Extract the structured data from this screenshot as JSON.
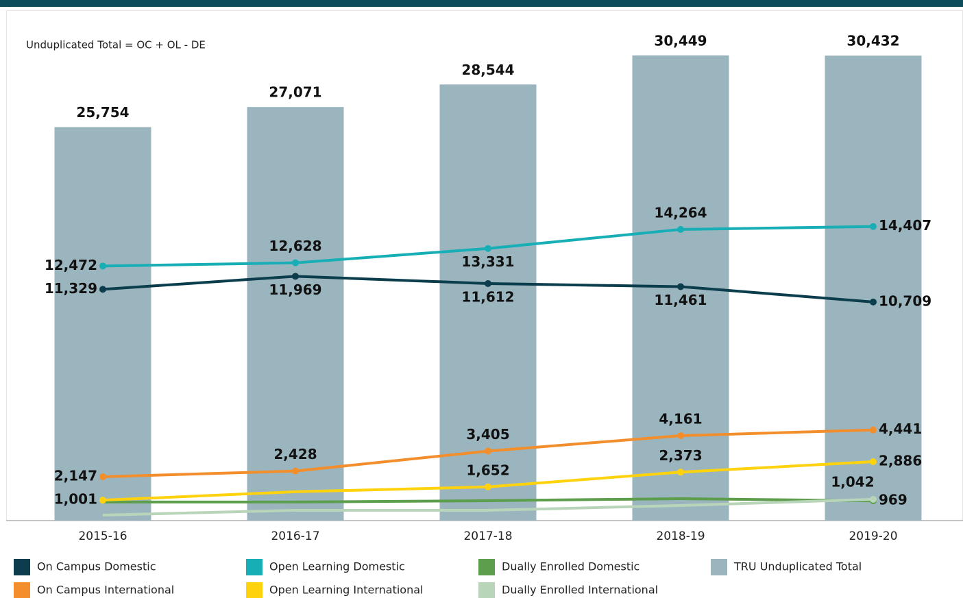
{
  "chart_data": {
    "type": "bar+line",
    "annotation": "Unduplicated Total = OC + OL - DE",
    "categories": [
      "2015-16",
      "2016-17",
      "2017-18",
      "2018-19",
      "2019-20"
    ],
    "ylim": [
      0,
      25000
    ],
    "y2lim": [
      0,
      33400
    ],
    "series": [
      {
        "name": "On Campus Domestic",
        "type": "line",
        "color": "#0b3d4c",
        "values": [
          11329,
          11969,
          11612,
          11461,
          10709
        ],
        "value_labels": [
          "11,329",
          "11,969",
          "11,612",
          "11,461",
          "10,709"
        ]
      },
      {
        "name": "Open Learning Domestic",
        "type": "line",
        "color": "#17aeb5",
        "values": [
          12472,
          12628,
          13331,
          14264,
          14407
        ],
        "value_labels": [
          "12,472",
          "12,628",
          "13,331",
          "14,264",
          "14,407"
        ]
      },
      {
        "name": "Dually Enrolled Domestic",
        "type": "line",
        "color": "#5c9e4b",
        "values": [
          910,
          910,
          975,
          1075,
          969
        ],
        "value_labels": [
          null,
          null,
          null,
          null,
          "969"
        ]
      },
      {
        "name": "TRU Unduplicated Total",
        "type": "bar",
        "axis": "y2",
        "color": "#9bb5bf",
        "values": [
          25754,
          27071,
          28544,
          30449,
          30432
        ],
        "value_labels": [
          "25,754",
          "27,071",
          "28,544",
          "30,449",
          "30,432"
        ]
      },
      {
        "name": "On Campus International",
        "type": "line",
        "color": "#f28e2b",
        "values": [
          2147,
          2428,
          3405,
          4161,
          4441
        ],
        "value_labels": [
          "2,147",
          "2,428",
          "3,405",
          "4,161",
          "4,441"
        ]
      },
      {
        "name": "Open Learning International",
        "type": "line",
        "color": "#ffd20e",
        "values": [
          1001,
          1413,
          1652,
          2373,
          2886
        ],
        "value_labels": [
          "1,001",
          null,
          "1,652",
          "2,373",
          "2,886"
        ]
      },
      {
        "name": "Dually Enrolled International",
        "type": "line",
        "color": "#b9d5b9",
        "values": [
          270,
          505,
          505,
          740,
          1042
        ],
        "value_labels": [
          null,
          null,
          null,
          null,
          "1,042"
        ]
      }
    ]
  }
}
